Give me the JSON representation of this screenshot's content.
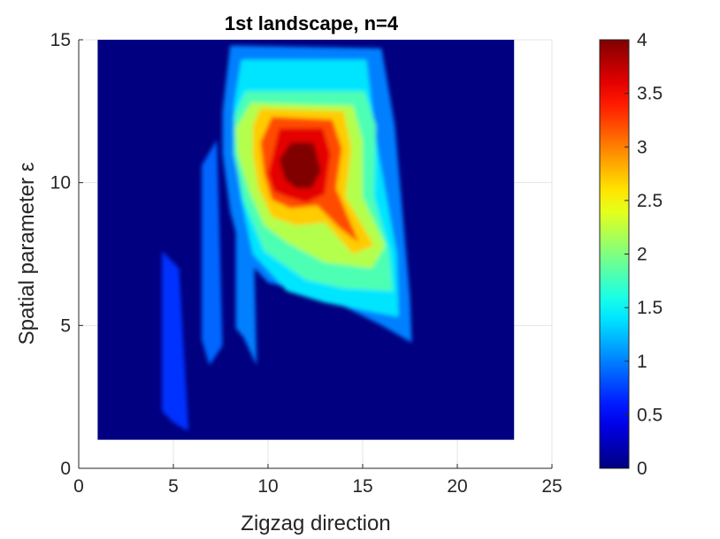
{
  "chart_data": {
    "type": "heatmap",
    "title": "1st landscape, n=4",
    "xlabel": "Zigzag direction",
    "ylabel": "Spatial parameter ε",
    "xlim": [
      0,
      25
    ],
    "ylim": [
      0,
      15
    ],
    "xticks": [
      "0",
      "5",
      "10",
      "15",
      "20",
      "25"
    ],
    "yticks": [
      "0",
      "5",
      "10",
      "15"
    ],
    "data_extent": {
      "x": [
        1,
        23
      ],
      "y": [
        1,
        15
      ]
    },
    "colorbar": {
      "colormap": "jet",
      "range": [
        0,
        4
      ],
      "ticks": [
        "0",
        "0.5",
        "1",
        "1.5",
        "2",
        "2.5",
        "3",
        "3.5",
        "4"
      ]
    },
    "grid": true,
    "background_value": 0,
    "regions": [
      {
        "value": 0.7,
        "points": [
          [
            4.4,
            7.6
          ],
          [
            5.3,
            7.0
          ],
          [
            5.8,
            1.3
          ],
          [
            5.0,
            1.6
          ],
          [
            4.4,
            2.0
          ]
        ]
      },
      {
        "value": 0.9,
        "points": [
          [
            6.5,
            10.6
          ],
          [
            7.3,
            11.5
          ],
          [
            7.6,
            4.3
          ],
          [
            6.9,
            3.6
          ],
          [
            6.5,
            4.5
          ]
        ]
      },
      {
        "value": 1.0,
        "points": [
          [
            8.3,
            9.5
          ],
          [
            9.2,
            9.0
          ],
          [
            9.4,
            3.6
          ],
          [
            8.7,
            4.6
          ],
          [
            8.3,
            4.9
          ]
        ]
      },
      {
        "value": 1.0,
        "points": [
          [
            7.6,
            12.5
          ],
          [
            8.0,
            14.8
          ],
          [
            16.0,
            14.7
          ],
          [
            16.7,
            12.0
          ],
          [
            17.5,
            6.0
          ],
          [
            17.6,
            4.4
          ],
          [
            16.0,
            5.0
          ],
          [
            13.0,
            6.0
          ],
          [
            10.0,
            6.5
          ],
          [
            8.6,
            7.5
          ],
          [
            8.0,
            9.0
          ],
          [
            7.6,
            11.0
          ]
        ]
      },
      {
        "value": 1.4,
        "points": [
          [
            8.2,
            12.7
          ],
          [
            8.6,
            14.3
          ],
          [
            15.2,
            14.3
          ],
          [
            15.7,
            11.5
          ],
          [
            16.8,
            7.5
          ],
          [
            16.9,
            5.3
          ],
          [
            13.0,
            5.8
          ],
          [
            11.0,
            6.2
          ],
          [
            9.2,
            7.5
          ],
          [
            8.6,
            9.4
          ],
          [
            8.2,
            11.5
          ]
        ]
      },
      {
        "value": 1.8,
        "points": [
          [
            8.2,
            12.3
          ],
          [
            8.8,
            13.2
          ],
          [
            15.1,
            13.2
          ],
          [
            15.7,
            12.0
          ],
          [
            15.6,
            9.5
          ],
          [
            16.4,
            7.6
          ],
          [
            16.6,
            6.2
          ],
          [
            14.0,
            6.3
          ],
          [
            12.0,
            6.6
          ],
          [
            9.8,
            7.6
          ],
          [
            8.7,
            9.4
          ],
          [
            8.2,
            11.0
          ]
        ]
      },
      {
        "value": 2.2,
        "points": [
          [
            8.3,
            11.9
          ],
          [
            9.1,
            12.8
          ],
          [
            14.5,
            12.7
          ],
          [
            15.0,
            11.5
          ],
          [
            15.0,
            9.5
          ],
          [
            16.2,
            7.8
          ],
          [
            15.5,
            7.0
          ],
          [
            13.0,
            7.2
          ],
          [
            11.0,
            7.9
          ],
          [
            9.8,
            8.5
          ],
          [
            9.0,
            9.7
          ],
          [
            8.4,
            11.0
          ]
        ]
      },
      {
        "value": 2.7,
        "points": [
          [
            9.2,
            12.0
          ],
          [
            9.6,
            12.6
          ],
          [
            14.0,
            12.5
          ],
          [
            14.4,
            11.2
          ],
          [
            14.1,
            9.5
          ],
          [
            15.6,
            7.8
          ],
          [
            14.5,
            7.5
          ],
          [
            13.0,
            8.6
          ],
          [
            11.5,
            8.5
          ],
          [
            10.2,
            8.8
          ],
          [
            9.5,
            9.8
          ],
          [
            9.2,
            11.0
          ]
        ]
      },
      {
        "value": 3.2,
        "points": [
          [
            9.6,
            11.4
          ],
          [
            10.2,
            12.3
          ],
          [
            13.4,
            12.2
          ],
          [
            13.9,
            11.2
          ],
          [
            13.6,
            9.8
          ],
          [
            14.8,
            7.9
          ],
          [
            13.8,
            8.4
          ],
          [
            12.6,
            9.2
          ],
          [
            11.2,
            9.1
          ],
          [
            10.2,
            9.4
          ],
          [
            9.8,
            10.3
          ]
        ]
      },
      {
        "value": 3.6,
        "points": [
          [
            10.0,
            10.3
          ],
          [
            10.6,
            11.9
          ],
          [
            12.9,
            11.9
          ],
          [
            13.3,
            11.0
          ],
          [
            13.0,
            9.6
          ],
          [
            12.0,
            9.3
          ],
          [
            11.0,
            9.5
          ],
          [
            10.3,
            9.7
          ]
        ]
      },
      {
        "value": 4.0,
        "points": [
          [
            10.6,
            10.8
          ],
          [
            11.2,
            11.4
          ],
          [
            12.4,
            11.4
          ],
          [
            12.8,
            10.4
          ],
          [
            12.3,
            9.8
          ],
          [
            11.5,
            9.8
          ],
          [
            10.9,
            10.1
          ]
        ]
      }
    ]
  }
}
